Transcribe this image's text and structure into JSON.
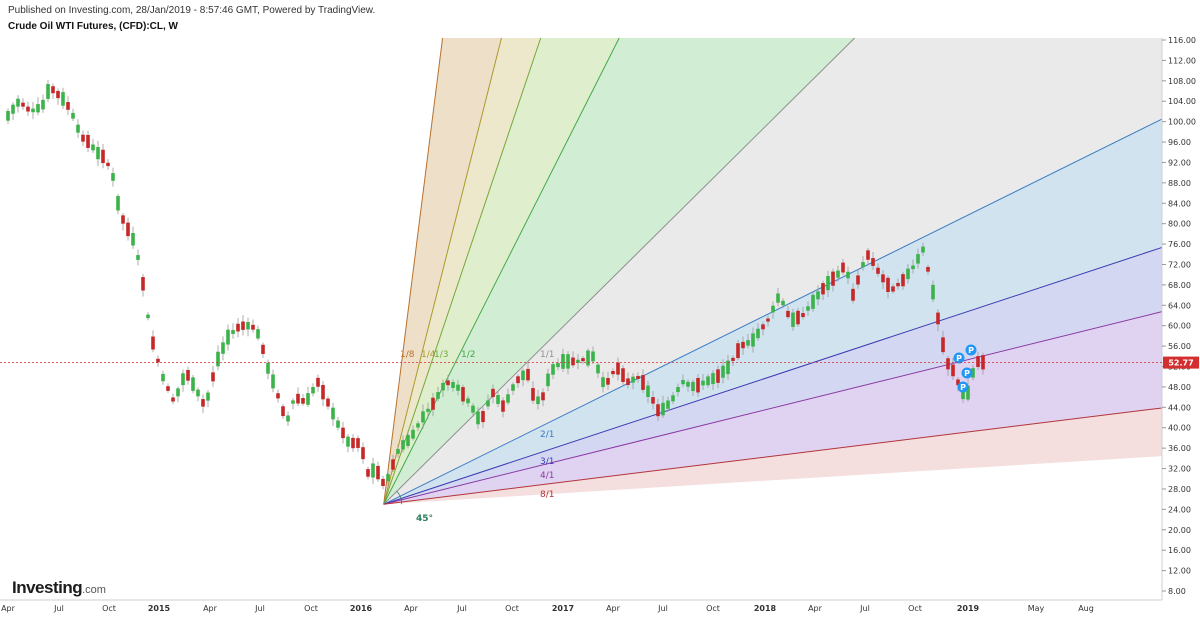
{
  "header": {
    "published": "Published on Investing.com, 28/Jan/2019 - 8:57:46 GMT, Powered by TradingView.",
    "symbol": "Crude Oil WTI Futures, (CFD):CL, W"
  },
  "logo": {
    "brand": "Investing",
    "suffix": ".com"
  },
  "chart_data": {
    "type": "candlestick",
    "ylim": [
      4,
      116
    ],
    "y_ticks": [
      "116.00",
      "112.00",
      "108.00",
      "104.00",
      "100.00",
      "96.00",
      "92.00",
      "88.00",
      "84.00",
      "80.00",
      "76.00",
      "72.00",
      "68.00",
      "64.00",
      "60.00",
      "56.00",
      "52.00",
      "48.00",
      "44.00",
      "40.00",
      "36.00",
      "32.00",
      "28.00",
      "24.00",
      "20.00",
      "16.00",
      "12.00",
      "8.00"
    ],
    "x_tick_labels": [
      "Apr",
      "Jul",
      "Oct",
      "2015",
      "Apr",
      "Jul",
      "Oct",
      "2016",
      "Apr",
      "Jul",
      "Oct",
      "2017",
      "Apr",
      "Jul",
      "Oct",
      "2018",
      "Apr",
      "Jul",
      "Oct",
      "2019",
      "May",
      "Aug"
    ],
    "last_price": "52.77",
    "last_price_value": 52.77,
    "price_path": [
      [
        "2014-03-31",
        101
      ],
      [
        "2014-04-21",
        104
      ],
      [
        "2014-05-12",
        102
      ],
      [
        "2014-06-02",
        103
      ],
      [
        "2014-06-16",
        107
      ],
      [
        "2014-06-23",
        106
      ],
      [
        "2014-07-14",
        104
      ],
      [
        "2014-07-28",
        101
      ],
      [
        "2014-08-11",
        97
      ],
      [
        "2014-08-25",
        96
      ],
      [
        "2014-09-08",
        94
      ],
      [
        "2014-09-22",
        93
      ],
      [
        "2014-10-06",
        90
      ],
      [
        "2014-10-20",
        82
      ],
      [
        "2014-11-03",
        79
      ],
      [
        "2014-11-17",
        76
      ],
      [
        "2014-12-01",
        68
      ],
      [
        "2014-12-15",
        58
      ],
      [
        "2015-01-05",
        50
      ],
      [
        "2015-01-26",
        45
      ],
      [
        "2015-02-16",
        51
      ],
      [
        "2015-03-09",
        47
      ],
      [
        "2015-03-23",
        44
      ],
      [
        "2015-04-13",
        53
      ],
      [
        "2015-05-04",
        58
      ],
      [
        "2015-05-25",
        60
      ],
      [
        "2015-06-15",
        60
      ],
      [
        "2015-06-29",
        58
      ],
      [
        "2015-07-13",
        52
      ],
      [
        "2015-07-27",
        48
      ],
      [
        "2015-08-17",
        41
      ],
      [
        "2015-08-31",
        46
      ],
      [
        "2015-09-21",
        45
      ],
      [
        "2015-10-12",
        49
      ],
      [
        "2015-10-26",
        46
      ],
      [
        "2015-11-16",
        41
      ],
      [
        "2015-12-07",
        37
      ],
      [
        "2015-12-28",
        37
      ],
      [
        "2016-01-11",
        31
      ],
      [
        "2016-01-25",
        32
      ],
      [
        "2016-02-08",
        29
      ],
      [
        "2016-02-15",
        30
      ],
      [
        "2016-03-07",
        36
      ],
      [
        "2016-03-28",
        38
      ],
      [
        "2016-04-18",
        42
      ],
      [
        "2016-05-09",
        45
      ],
      [
        "2016-05-30",
        49
      ],
      [
        "2016-06-20",
        48
      ],
      [
        "2016-07-11",
        45
      ],
      [
        "2016-08-01",
        41
      ],
      [
        "2016-08-22",
        47
      ],
      [
        "2016-09-12",
        44
      ],
      [
        "2016-10-03",
        49
      ],
      [
        "2016-10-24",
        51
      ],
      [
        "2016-11-07",
        45
      ],
      [
        "2016-11-21",
        46
      ],
      [
        "2016-12-05",
        51
      ],
      [
        "2016-12-26",
        53
      ],
      [
        "2017-01-23",
        53
      ],
      [
        "2017-02-20",
        54
      ],
      [
        "2017-03-13",
        48
      ],
      [
        "2017-04-03",
        52
      ],
      [
        "2017-04-24",
        49
      ],
      [
        "2017-05-15",
        50
      ],
      [
        "2017-06-05",
        46
      ],
      [
        "2017-06-19",
        43
      ],
      [
        "2017-07-10",
        45
      ],
      [
        "2017-07-31",
        49
      ],
      [
        "2017-08-21",
        48
      ],
      [
        "2017-09-11",
        49
      ],
      [
        "2017-10-02",
        50
      ],
      [
        "2017-10-23",
        52
      ],
      [
        "2017-11-13",
        56
      ],
      [
        "2017-12-04",
        57
      ],
      [
        "2018-01-01",
        61
      ],
      [
        "2018-01-22",
        66
      ],
      [
        "2018-02-12",
        61
      ],
      [
        "2018-03-05",
        62
      ],
      [
        "2018-03-26",
        65
      ],
      [
        "2018-04-16",
        68
      ],
      [
        "2018-05-07",
        70
      ],
      [
        "2018-05-21",
        72
      ],
      [
        "2018-06-04",
        66
      ],
      [
        "2018-06-25",
        73
      ],
      [
        "2018-07-02",
        74
      ],
      [
        "2018-07-23",
        70
      ],
      [
        "2018-08-13",
        67
      ],
      [
        "2018-09-03",
        69
      ],
      [
        "2018-09-24",
        72
      ],
      [
        "2018-10-08",
        75
      ],
      [
        "2018-10-22",
        69
      ],
      [
        "2018-11-05",
        61
      ],
      [
        "2018-11-19",
        53
      ],
      [
        "2018-12-03",
        51
      ],
      [
        "2018-12-17",
        47
      ],
      [
        "2018-12-24",
        45
      ],
      [
        "2019-01-07",
        51
      ],
      [
        "2019-01-14",
        53
      ],
      [
        "2019-01-28",
        52.77
      ]
    ],
    "gann_fan": {
      "origin": [
        "2016-02-08",
        25
      ],
      "lines": [
        {
          "label": "1/8",
          "color": "#b8722c",
          "fill": "#ebd9c0",
          "slope_class": "1/8"
        },
        {
          "label": "1/4",
          "color": "#a99a2c",
          "fill": "#eae4c2",
          "slope_class": "1/4"
        },
        {
          "label": "1/3",
          "color": "#73a83a",
          "fill": "#d9ecc4",
          "slope_class": "1/3"
        },
        {
          "label": "1/2",
          "color": "#43a84a",
          "fill": "#c9ebcd",
          "slope_class": "1/2"
        },
        {
          "label": "1/1",
          "color": "#909090",
          "fill": "#e6e6e6",
          "slope_class": "1/1"
        },
        {
          "label": "2/1",
          "color": "#3b7bc4",
          "fill": "#c8deec",
          "slope_class": "2/1"
        },
        {
          "label": "3/1",
          "color": "#3a3ab4",
          "fill": "#cdd0ee",
          "slope_class": "3/1"
        },
        {
          "label": "4/1",
          "color": "#8a3aa4",
          "fill": "#dbcaee",
          "slope_class": "4/1"
        },
        {
          "label": "8/1",
          "color": "#b2333a",
          "fill": "#f2d8d8",
          "slope_class": "8/1"
        }
      ],
      "angle_label": "45°"
    },
    "markers": [
      "P",
      "P",
      "P",
      "P"
    ]
  }
}
